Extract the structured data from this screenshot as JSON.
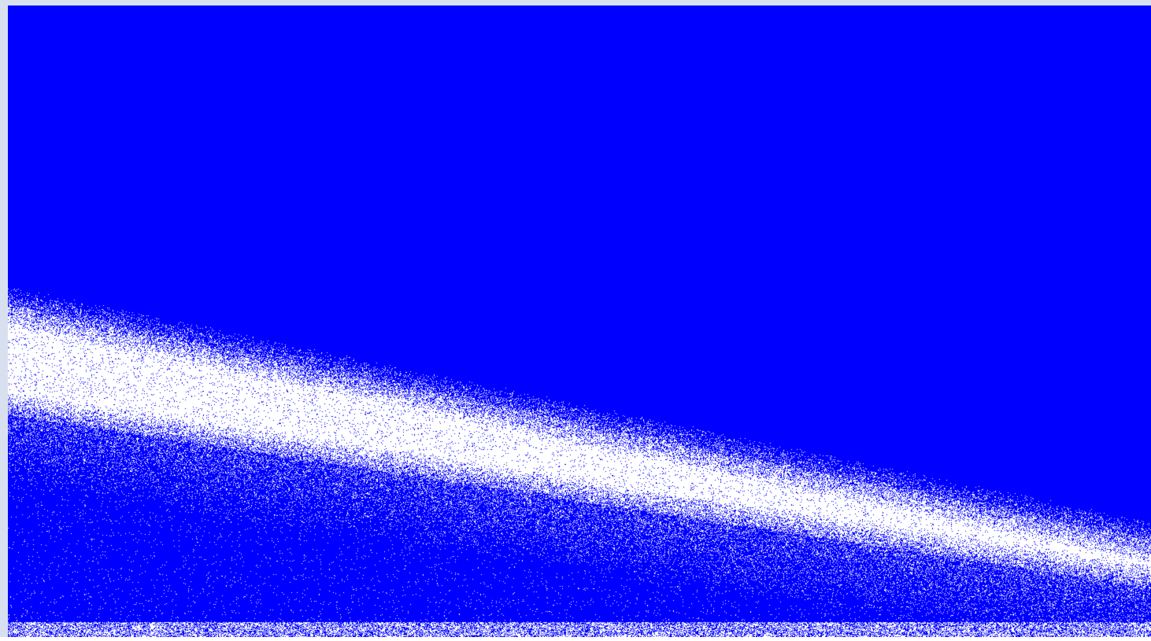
{
  "app": {
    "window_title": ""
  },
  "simulation": {
    "background_color": "#0000ff",
    "particle_color": "#ffffff",
    "description": ""
  }
}
